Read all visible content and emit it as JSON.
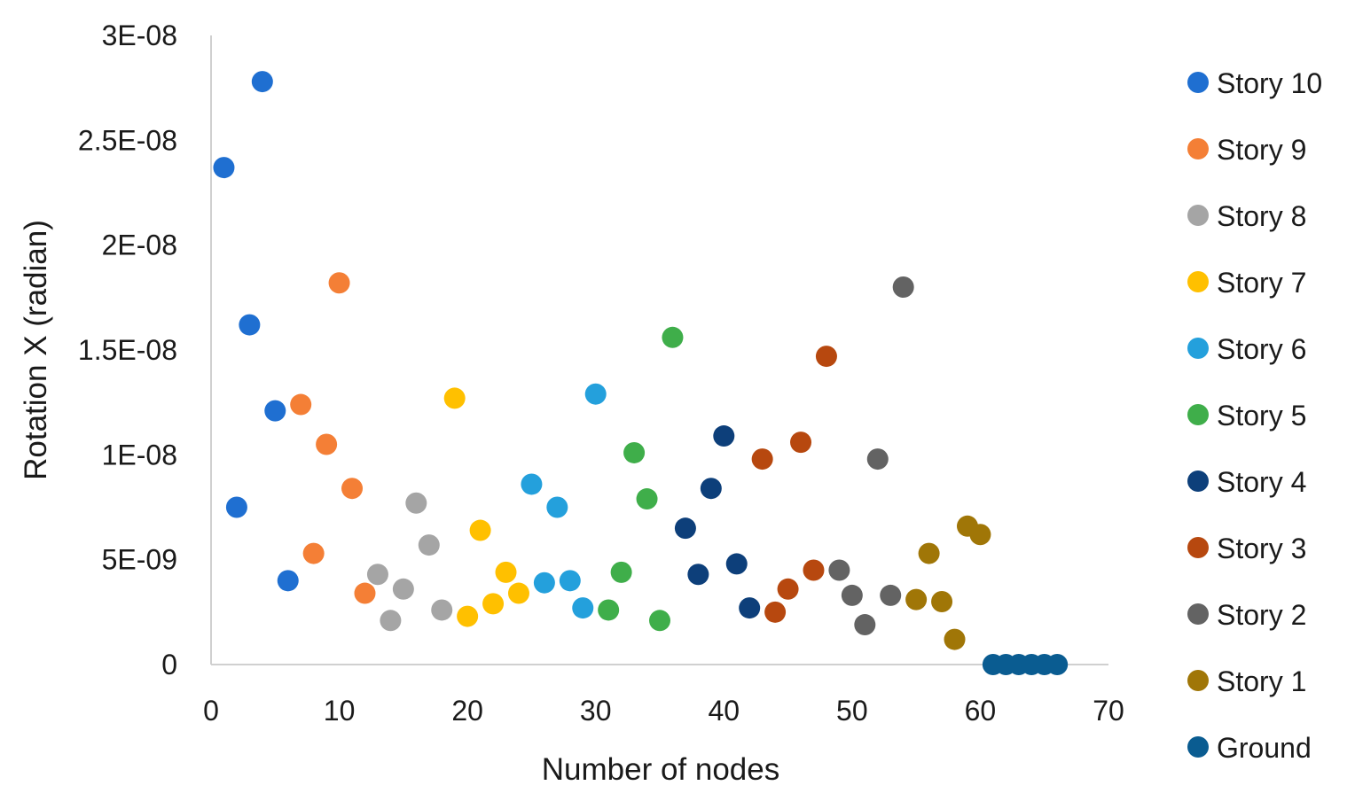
{
  "chart_data": {
    "type": "scatter",
    "title": "",
    "xlabel": "Number of nodes",
    "ylabel": "Rotation X (radian)",
    "xlim": [
      0,
      70
    ],
    "ylim": [
      0,
      3e-08
    ],
    "x_ticks": [
      0,
      10,
      20,
      30,
      40,
      50,
      60,
      70
    ],
    "x_tick_labels": [
      "0",
      "10",
      "20",
      "30",
      "40",
      "50",
      "60",
      "70"
    ],
    "y_ticks": [
      0,
      5e-09,
      1e-08,
      1.5e-08,
      2e-08,
      2.5e-08,
      3e-08
    ],
    "y_tick_labels": [
      "0",
      "5E-09",
      "1E-08",
      "1.5E-08",
      "2E-08",
      "2.5E-08",
      "3E-08"
    ],
    "grid": false,
    "legend_position": "right",
    "series": [
      {
        "name": "Story 10",
        "color": "#1f6fd1",
        "points": [
          [
            1,
            2.37e-08
          ],
          [
            2,
            7.5e-09
          ],
          [
            3,
            1.62e-08
          ],
          [
            4,
            2.78e-08
          ],
          [
            5,
            1.21e-08
          ],
          [
            6,
            4e-09
          ]
        ]
      },
      {
        "name": "Story 9",
        "color": "#f47f36",
        "points": [
          [
            7,
            1.24e-08
          ],
          [
            8,
            5.3e-09
          ],
          [
            9,
            1.05e-08
          ],
          [
            10,
            1.82e-08
          ],
          [
            11,
            8.4e-09
          ],
          [
            12,
            3.4e-09
          ]
        ]
      },
      {
        "name": "Story 8",
        "color": "#a5a5a5",
        "points": [
          [
            13,
            4.3e-09
          ],
          [
            14,
            2.1e-09
          ],
          [
            15,
            3.6e-09
          ],
          [
            16,
            7.7e-09
          ],
          [
            17,
            5.7e-09
          ],
          [
            18,
            2.6e-09
          ]
        ]
      },
      {
        "name": "Story 7",
        "color": "#ffc000",
        "points": [
          [
            19,
            1.27e-08
          ],
          [
            20,
            2.3e-09
          ],
          [
            21,
            6.4e-09
          ],
          [
            22,
            2.9e-09
          ],
          [
            23,
            4.4e-09
          ],
          [
            24,
            3.4e-09
          ]
        ]
      },
      {
        "name": "Story 6",
        "color": "#24a0dc",
        "points": [
          [
            25,
            8.6e-09
          ],
          [
            26,
            3.9e-09
          ],
          [
            27,
            7.5e-09
          ],
          [
            28,
            4e-09
          ],
          [
            29,
            2.7e-09
          ],
          [
            30,
            1.29e-08
          ]
        ]
      },
      {
        "name": "Story 5",
        "color": "#3fae4a",
        "points": [
          [
            31,
            2.6e-09
          ],
          [
            32,
            4.4e-09
          ],
          [
            33,
            1.01e-08
          ],
          [
            34,
            7.9e-09
          ],
          [
            35,
            2.1e-09
          ],
          [
            36,
            1.56e-08
          ]
        ]
      },
      {
        "name": "Story 4",
        "color": "#0d3f7a",
        "points": [
          [
            37,
            6.5e-09
          ],
          [
            38,
            4.3e-09
          ],
          [
            39,
            8.4e-09
          ],
          [
            40,
            1.09e-08
          ],
          [
            41,
            4.8e-09
          ],
          [
            42,
            2.7e-09
          ]
        ]
      },
      {
        "name": "Story 3",
        "color": "#b7480f",
        "points": [
          [
            43,
            9.8e-09
          ],
          [
            44,
            2.5e-09
          ],
          [
            45,
            3.6e-09
          ],
          [
            46,
            1.06e-08
          ],
          [
            47,
            4.5e-09
          ],
          [
            48,
            1.47e-08
          ]
        ]
      },
      {
        "name": "Story 2",
        "color": "#636363",
        "points": [
          [
            49,
            4.5e-09
          ],
          [
            50,
            3.3e-09
          ],
          [
            51,
            1.9e-09
          ],
          [
            52,
            9.8e-09
          ],
          [
            53,
            3.3e-09
          ],
          [
            54,
            1.8e-08
          ]
        ]
      },
      {
        "name": "Story 1",
        "color": "#a07607",
        "points": [
          [
            55,
            3.1e-09
          ],
          [
            56,
            5.3e-09
          ],
          [
            57,
            3e-09
          ],
          [
            58,
            1.2e-09
          ],
          [
            59,
            6.6e-09
          ],
          [
            60,
            6.2e-09
          ]
        ]
      },
      {
        "name": "Ground",
        "color": "#0a5c91",
        "points": [
          [
            61,
            0
          ],
          [
            62,
            0
          ],
          [
            63,
            0
          ],
          [
            64,
            0
          ],
          [
            65,
            0
          ],
          [
            66,
            0
          ]
        ]
      }
    ]
  }
}
